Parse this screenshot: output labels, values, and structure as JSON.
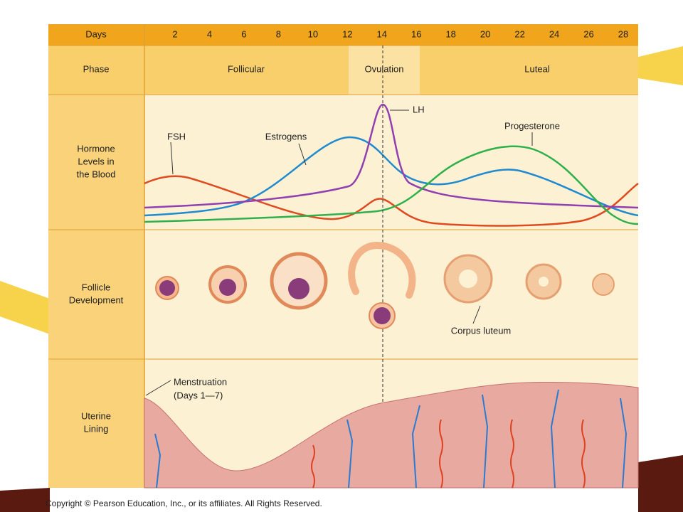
{
  "header": {
    "days_label": "Days",
    "days": [
      2,
      4,
      6,
      8,
      10,
      12,
      14,
      16,
      18,
      20,
      22,
      24,
      26,
      28
    ],
    "phase_label": "Phase",
    "phases": [
      "Follicular",
      "Ovulation",
      "Luteal"
    ]
  },
  "rows": [
    [
      "Hormone",
      "Levels in",
      "the Blood"
    ],
    [
      "Follicle",
      "Development"
    ],
    [
      "Uterine",
      "Lining"
    ]
  ],
  "hormones": [
    "FSH",
    "Estrogens",
    "LH",
    "Progesterone"
  ],
  "annotations": {
    "corpus_luteum": "Corpus luteum",
    "menstruation": "Menstruation",
    "menstruation_days": "(Days 1—7)"
  },
  "copyright": "Copyright © Pearson Education, Inc., or its affiliates. All Rights Reserved."
}
